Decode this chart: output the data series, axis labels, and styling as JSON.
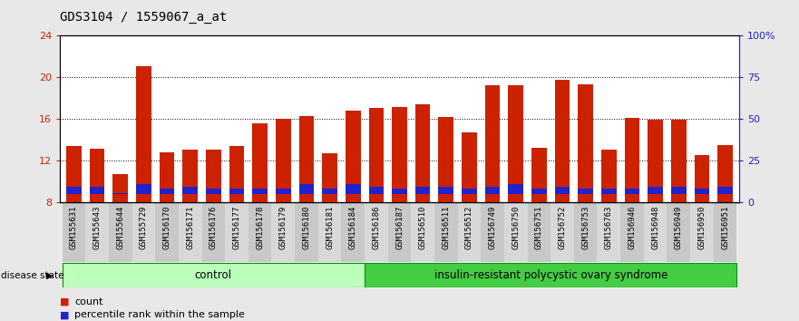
{
  "title": "GDS3104 / 1559067_a_at",
  "samples": [
    "GSM155631",
    "GSM155643",
    "GSM155644",
    "GSM155729",
    "GSM156170",
    "GSM156171",
    "GSM156176",
    "GSM156177",
    "GSM156178",
    "GSM156179",
    "GSM156180",
    "GSM156181",
    "GSM156184",
    "GSM156186",
    "GSM156187",
    "GSM156510",
    "GSM156511",
    "GSM156512",
    "GSM156749",
    "GSM156750",
    "GSM156751",
    "GSM156752",
    "GSM156753",
    "GSM156763",
    "GSM156946",
    "GSM156948",
    "GSM156949",
    "GSM156950",
    "GSM156951"
  ],
  "red_values": [
    13.4,
    13.1,
    10.7,
    21.0,
    12.8,
    13.0,
    13.0,
    13.4,
    15.6,
    16.0,
    16.3,
    12.7,
    16.8,
    17.0,
    17.1,
    17.4,
    16.2,
    14.7,
    19.2,
    19.2,
    13.2,
    19.7,
    19.3,
    13.0,
    16.1,
    15.9,
    15.9,
    12.5,
    13.5
  ],
  "blue_values": [
    9.5,
    9.5,
    8.9,
    9.7,
    9.3,
    9.5,
    9.3,
    9.3,
    9.3,
    9.3,
    9.7,
    9.3,
    9.7,
    9.5,
    9.3,
    9.5,
    9.5,
    9.3,
    9.5,
    9.7,
    9.3,
    9.5,
    9.3,
    9.3,
    9.3,
    9.5,
    9.5,
    9.3,
    9.5
  ],
  "n_control": 13,
  "n_disease": 16,
  "group_labels": [
    "control",
    "insulin-resistant polycystic ovary syndrome"
  ],
  "bar_color_red": "#cc2200",
  "bar_color_blue": "#2222cc",
  "ylim_left": [
    8,
    24
  ],
  "ylim_right": [
    0,
    100
  ],
  "yticks_left": [
    8,
    12,
    16,
    20,
    24
  ],
  "yticks_right": [
    0,
    25,
    50,
    75,
    100
  ],
  "ytick_labels_right": [
    "0",
    "25",
    "50",
    "75",
    "100%"
  ],
  "legend_items": [
    "count",
    "percentile rank within the sample"
  ],
  "disease_state_label": "disease state",
  "bg_color": "#e8e8e8",
  "plot_bg": "#ffffff",
  "title_fontsize": 10,
  "tick_fontsize": 6.5,
  "bar_width": 0.65
}
